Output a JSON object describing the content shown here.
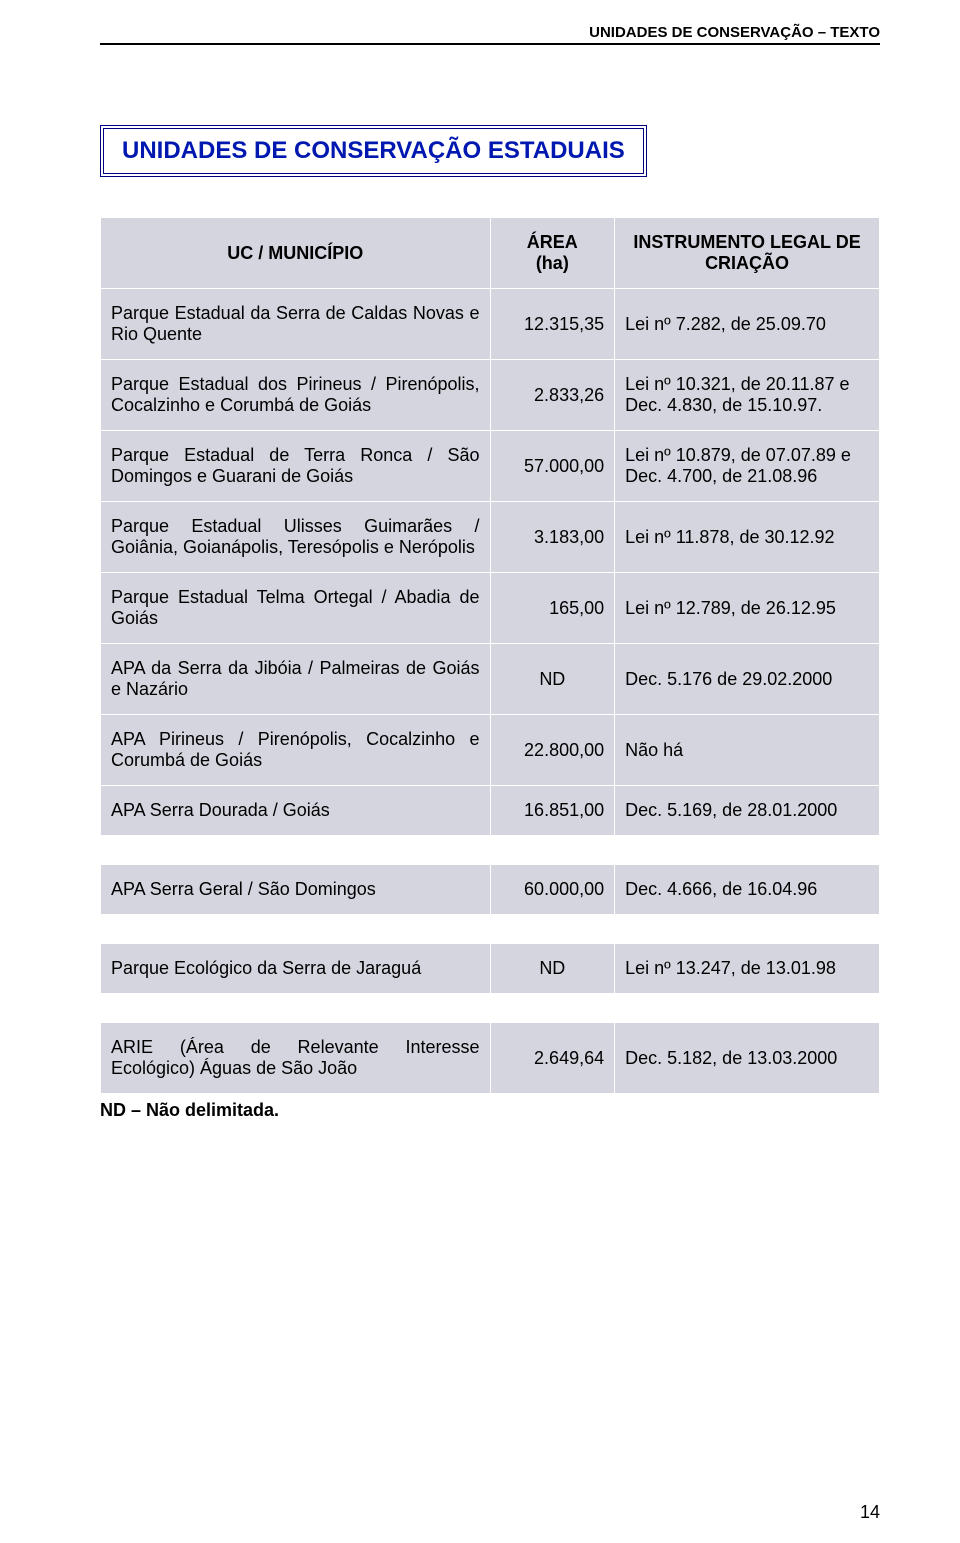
{
  "running_header": "UNIDADES DE CONSERVAÇÃO – TEXTO",
  "title_parts": {
    "a": "U",
    "b": "NIDADES DE ",
    "c": "C",
    "d": "ONSERVAÇÃO ",
    "e": "E",
    "f": "STADUAIS"
  },
  "headers": {
    "uc": "UC / MUNICÍPIO",
    "area_l1": "ÁREA",
    "area_l2": "(ha)",
    "inst_l1": "INSTRUMENTO LEGAL DE",
    "inst_l2": "CRIAÇÃO"
  },
  "rows": [
    {
      "uc": "Parque Estadual da Serra de Caldas Novas e Rio Quente",
      "area": "12.315,35",
      "inst": "Lei nº 7.282, de 25.09.70"
    },
    {
      "uc": "Parque Estadual dos Pirineus / Pirenópolis, Cocalzinho e Corumbá de Goiás",
      "area": "2.833,26",
      "inst": "Lei nº 10.321, de 20.11.87 e Dec. 4.830, de 15.10.97."
    },
    {
      "uc": "Parque Estadual de Terra Ronca / São Domingos e Guarani de Goiás",
      "area": "57.000,00",
      "inst": "Lei nº 10.879, de 07.07.89 e Dec. 4.700, de 21.08.96"
    },
    {
      "uc": "Parque Estadual Ulisses Guimarães / Goiânia, Goianápolis, Teresópolis e Nerópolis",
      "area": "3.183,00",
      "inst": "Lei nº 11.878, de 30.12.92"
    },
    {
      "uc": "Parque Estadual Telma Ortegal / Abadia de Goiás",
      "area": "165,00",
      "inst": "Lei nº 12.789, de 26.12.95"
    },
    {
      "uc": "APA da Serra da Jibóia / Palmeiras de Goiás e Nazário",
      "area": "ND",
      "inst": "Dec. 5.176 de 29.02.2000"
    },
    {
      "uc": "APA Pirineus / Pirenópolis, Cocalzinho e Corumbá de Goiás",
      "area": "22.800,00",
      "inst": "Não há"
    },
    {
      "uc": "APA Serra Dourada / Goiás",
      "area": "16.851,00",
      "inst": "Dec. 5.169, de 28.01.2000",
      "gap_after": true
    },
    {
      "uc": "APA Serra Geral / São Domingos",
      "area": "60.000,00",
      "inst": "Dec. 4.666, de 16.04.96",
      "gap_after": true
    },
    {
      "uc": "Parque Ecológico da Serra de Jaraguá",
      "area": "ND",
      "inst": "Lei nº 13.247, de 13.01.98",
      "gap_after": true
    },
    {
      "uc": "ARIE (Área de Relevante Interesse Ecológico) Águas de São João",
      "area": "2.649,64",
      "inst": "Dec. 5.182, de 13.03.2000"
    }
  ],
  "nd_area_align": "center",
  "footnote": "ND – Não delimitada.",
  "page_number": "14",
  "colors": {
    "title": "#0018b0",
    "title_border": "#000080",
    "table_bg": "#d5d5e0",
    "cell_border": "#ffffff"
  }
}
